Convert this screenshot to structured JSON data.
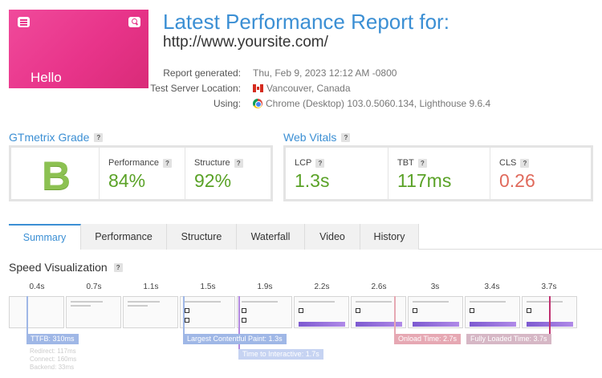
{
  "hero": {
    "hello_text": "Hello"
  },
  "report": {
    "title": "Latest Performance Report for:",
    "url": "http://www.yoursite.com/",
    "meta": [
      {
        "key": "Report generated:",
        "value": "Thu, Feb 9, 2023 12:12 AM -0800"
      },
      {
        "key": "Test Server Location:",
        "value": "Vancouver, Canada"
      },
      {
        "key": "Using:",
        "value": "Chrome (Desktop) 103.0.5060.134, Lighthouse 9.6.4"
      }
    ]
  },
  "grade": {
    "heading": "GTmetrix Grade",
    "letter": "B",
    "performance_label": "Performance",
    "performance_value": "84%",
    "structure_label": "Structure",
    "structure_value": "92%"
  },
  "vitals": {
    "heading": "Web Vitals",
    "lcp_label": "LCP",
    "lcp_value": "1.3s",
    "tbt_label": "TBT",
    "tbt_value": "117ms",
    "cls_label": "CLS",
    "cls_value": "0.26"
  },
  "help_glyph": "?",
  "tabs": [
    "Summary",
    "Performance",
    "Structure",
    "Waterfall",
    "Video",
    "History"
  ],
  "speed": {
    "heading": "Speed Visualization",
    "times": [
      "0.4s",
      "0.7s",
      "1.1s",
      "1.5s",
      "1.9s",
      "2.2s",
      "2.6s",
      "3s",
      "3.4s",
      "3.7s"
    ],
    "markers": {
      "ttfb": "TTFB: 310ms",
      "redirect": "Redirect: 117ms",
      "connect": "Connect: 160ms",
      "backend": "Backend: 33ms",
      "lcp": "Largest Contentful Paint: 1.3s",
      "tti": "Time to Interactive: 1.7s",
      "onload": "Onload Time: 2.7s",
      "fully_loaded": "Fully Loaded Time: 3.7s"
    }
  },
  "colors": {
    "accent": "#3b8fd4",
    "good": "#5aa227",
    "bad": "#e06a5c",
    "grade": "#8cc152"
  },
  "icons": [
    "menu-icon",
    "search-icon",
    "canada-flag-icon",
    "chrome-icon",
    "help-icon"
  ]
}
